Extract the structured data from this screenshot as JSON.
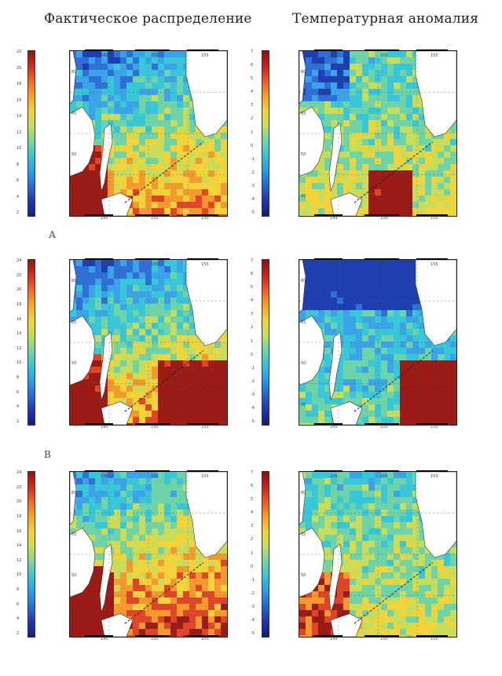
{
  "titles": {
    "left": "Фактическое распределение",
    "right": "Температурная аномалия"
  },
  "row_letters": [
    "",
    "А",
    "В"
  ],
  "colorbars": {
    "left_top": [
      "22",
      "20",
      "18",
      "16",
      "14",
      "12",
      "10",
      "8",
      "6",
      "4",
      "2"
    ],
    "left_mid": [
      "24",
      "22",
      "20",
      "18",
      "16",
      "14",
      "12",
      "10",
      "8",
      "6",
      "4",
      "2"
    ],
    "left_bot": [
      "24",
      "22",
      "20",
      "18",
      "16",
      "14",
      "12",
      "10",
      "8",
      "6",
      "4",
      "2"
    ],
    "right_top": [
      "7",
      "6",
      "5",
      "4",
      "3",
      "2",
      "1",
      "0",
      "-1",
      "-2",
      "-3",
      "-4",
      "-5"
    ],
    "right_mid": [
      "7",
      "6",
      "5",
      "4",
      "3",
      "2",
      "1",
      "0",
      "-1",
      "-2",
      "-3",
      "-4",
      "-5"
    ],
    "right_bot": [
      "7",
      "6",
      "5",
      "4",
      "3",
      "2",
      "1",
      "0",
      "-1",
      "-2",
      "-3",
      "-4",
      "-5"
    ]
  },
  "lon_labels_top": [
    "145",
    "150",
    "155"
  ],
  "lon_labels_bottom": [
    "145",
    "150",
    "155"
  ],
  "lat_labels": [
    "60",
    "55",
    "50",
    "45"
  ],
  "colors": {
    "deep_blue": "#1e3fb0",
    "blue": "#2f6fd6",
    "light_blue": "#3ba3e8",
    "cyan": "#37c7d8",
    "aqua_green": "#6fd3a8",
    "yellow_green": "#c8dc5a",
    "yellow": "#f2d43a",
    "orange": "#f29a2e",
    "red": "#e0452a",
    "dark_red": "#9b1b16",
    "land": "#ffffff"
  }
}
